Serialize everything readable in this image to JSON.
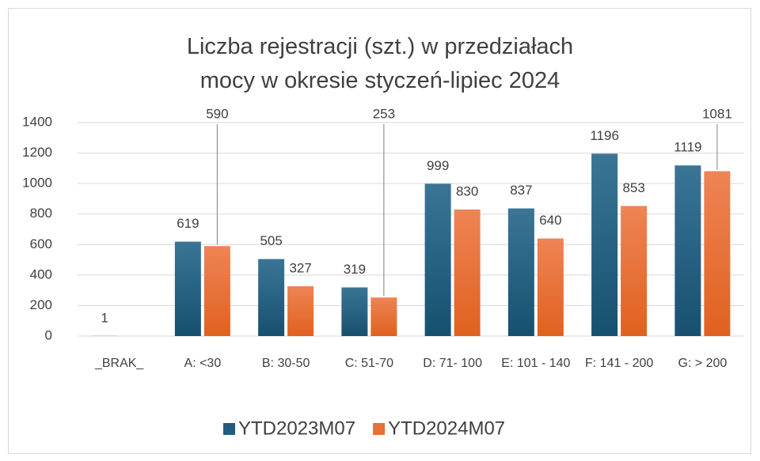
{
  "chart_data": {
    "type": "bar",
    "title": "Liczba rejestracji (szt.) w przedziałach mocy w okresie styczeń-lipiec 2024",
    "categories": [
      "_BRAK_",
      "A: <30",
      "B: 30-50",
      "C: 51-70",
      "D: 71- 100",
      "E: 101 - 140",
      "F: 141 - 200",
      "G: > 200"
    ],
    "series": [
      {
        "name": "YTD2023M07",
        "color": "#1f5c7e",
        "values": [
          1,
          619,
          505,
          319,
          999,
          837,
          1196,
          1119
        ]
      },
      {
        "name": "YTD2024M07",
        "color": "#e86f35",
        "values": [
          null,
          590,
          327,
          253,
          830,
          640,
          853,
          1081
        ]
      }
    ],
    "ylim": [
      0,
      1400
    ],
    "yticks": [
      0,
      200,
      400,
      600,
      800,
      1000,
      1200,
      1400
    ],
    "grid": true,
    "legend": "bottom"
  }
}
